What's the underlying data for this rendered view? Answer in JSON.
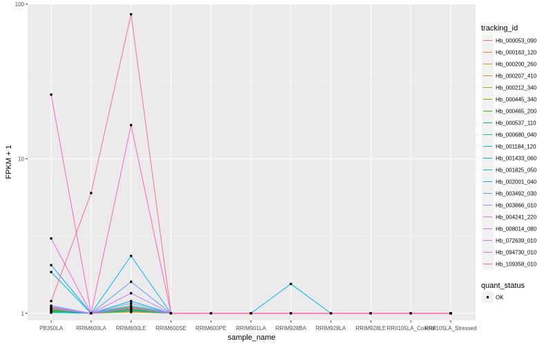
{
  "chart_data": {
    "type": "line",
    "xlabel": "sample_name",
    "ylabel": "FPKM + 1",
    "y_scale": "log10",
    "ylim": [
      0.9,
      100
    ],
    "y_ticks": [
      1,
      10,
      100
    ],
    "y_tick_labels": [
      "1",
      "10",
      "100"
    ],
    "grid": true,
    "categories": [
      "PB350LA",
      "RRIM600LA",
      "RRIM600LE",
      "RRIM600SE",
      "RRIM600PE",
      "RRIM901LA",
      "RRIM928BA",
      "RRIM928LA",
      "RRIM928LE",
      "RRII105LA_Control",
      "RRII105LA_Stressed"
    ],
    "legend": {
      "position": "right",
      "color_title": "tracking_id",
      "shape_title": "quant_status",
      "shape_items": [
        "OK"
      ]
    },
    "series": [
      {
        "name": "Hb_000053_090",
        "color": "#F8766D",
        "values": [
          1.1,
          1,
          1.05,
          1,
          1,
          1,
          1,
          1,
          1,
          1,
          1
        ]
      },
      {
        "name": "Hb_000163_120",
        "color": "#EA8331",
        "values": [
          1.06,
          1,
          1.03,
          1,
          1,
          1,
          1,
          1,
          1,
          1,
          1
        ]
      },
      {
        "name": "Hb_000200_260",
        "color": "#D89000",
        "values": [
          1.04,
          1,
          1.05,
          1,
          1,
          1,
          1,
          1,
          1,
          1,
          1
        ]
      },
      {
        "name": "Hb_000207_410",
        "color": "#C09B00",
        "values": [
          1.07,
          1,
          1.02,
          1,
          1,
          1,
          1,
          1,
          1,
          1,
          1
        ]
      },
      {
        "name": "Hb_000212_340",
        "color": "#A3A500",
        "values": [
          1.08,
          1,
          1.06,
          1,
          1,
          1,
          1,
          1,
          1,
          1,
          1
        ]
      },
      {
        "name": "Hb_000445_340",
        "color": "#7CAE00",
        "values": [
          1.03,
          1,
          1.08,
          1,
          1,
          1,
          1,
          1,
          1,
          1,
          1
        ]
      },
      {
        "name": "Hb_000465_200",
        "color": "#39B600",
        "values": [
          1.05,
          1,
          1.1,
          1,
          1,
          1,
          1,
          1,
          1,
          1,
          1
        ]
      },
      {
        "name": "Hb_000537_110",
        "color": "#00BB4E",
        "values": [
          1.02,
          1,
          1.07,
          1,
          1,
          1,
          1,
          1,
          1,
          1,
          1
        ]
      },
      {
        "name": "Hb_000680_040",
        "color": "#00BF7D",
        "values": [
          1.04,
          1,
          1.04,
          1,
          1,
          1,
          1,
          1,
          1,
          1,
          1
        ]
      },
      {
        "name": "Hb_001184_120",
        "color": "#00C1A3",
        "values": [
          1.02,
          1,
          1.12,
          1,
          1,
          1,
          1,
          1,
          1,
          1,
          1
        ]
      },
      {
        "name": "Hb_001433_060",
        "color": "#00BFC4",
        "values": [
          1.01,
          1,
          1.05,
          1,
          1,
          1,
          1,
          1,
          1,
          1,
          1
        ]
      },
      {
        "name": "Hb_001825_050",
        "color": "#00B8E7",
        "values": [
          1.85,
          1,
          2.35,
          1,
          1,
          1,
          1.55,
          1,
          1,
          1,
          1
        ]
      },
      {
        "name": "Hb_002001_040",
        "color": "#00A9FF",
        "values": [
          2.05,
          1,
          1.2,
          1,
          1,
          1,
          1,
          1,
          1,
          1,
          1
        ]
      },
      {
        "name": "Hb_003492_030",
        "color": "#619CFF",
        "values": [
          1.12,
          1,
          1.6,
          1,
          1,
          1,
          1,
          1,
          1,
          1,
          1
        ]
      },
      {
        "name": "Hb_003866_010",
        "color": "#9590FF",
        "values": [
          1.09,
          1,
          1.16,
          1,
          1,
          1,
          1,
          1,
          1,
          1,
          1
        ]
      },
      {
        "name": "Hb_004241_220",
        "color": "#C77CFF",
        "values": [
          1.1,
          1,
          1.35,
          1,
          1,
          1,
          1,
          1,
          1,
          1,
          1
        ]
      },
      {
        "name": "Hb_008014_080",
        "color": "#E76BF3",
        "values": [
          1.07,
          1,
          1.08,
          1,
          1,
          1,
          1,
          1,
          1,
          1,
          1
        ]
      },
      {
        "name": "Hb_072639_010",
        "color": "#FA62DB",
        "values": [
          3.05,
          1,
          1.09,
          1,
          1,
          1,
          1,
          1,
          1,
          1,
          1
        ]
      },
      {
        "name": "Hb_094730_010",
        "color": "#FF62BC",
        "values": [
          26.0,
          1,
          16.5,
          1,
          1,
          1,
          1,
          1,
          1,
          1,
          1
        ]
      },
      {
        "name": "Hb_109358_010",
        "color": "#FF6C91",
        "values": [
          1.2,
          6.0,
          86.0,
          1,
          1,
          1,
          1,
          1,
          1,
          1,
          1
        ]
      }
    ]
  }
}
